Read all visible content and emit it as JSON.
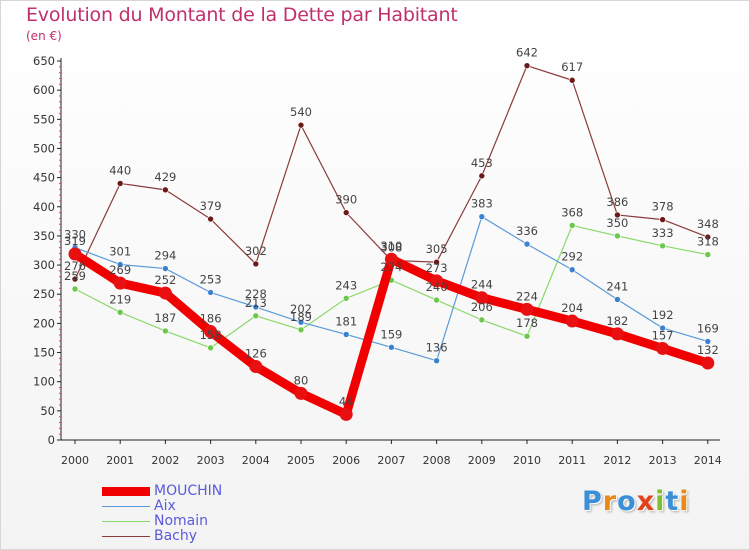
{
  "title": "Evolution du Montant de la Dette par Habitant",
  "unit_label": "(en €)",
  "logo": {
    "text": "Proxiti",
    "letters": [
      "P",
      "r",
      "o",
      "x",
      "i",
      "t",
      "i"
    ],
    "colors": [
      "#3a8fd8",
      "#e88a1a",
      "#3a8fd8",
      "#e0431a",
      "#7fbf30",
      "#3a8fd8",
      "#e88a1a"
    ]
  },
  "chart_data": {
    "type": "line",
    "title": "Evolution du Montant de la Dette par Habitant",
    "ylabel": "(en €)",
    "xlabel": "",
    "x": [
      "2000",
      "2001",
      "2002",
      "2003",
      "2004",
      "2005",
      "2006",
      "2007",
      "2008",
      "2009",
      "2010",
      "2011",
      "2012",
      "2013",
      "2014"
    ],
    "ylim": [
      0,
      650
    ],
    "yticks": [
      0,
      50,
      100,
      150,
      200,
      250,
      300,
      350,
      400,
      450,
      500,
      550,
      600,
      650
    ],
    "grid": false,
    "legend_position": "bottom-left",
    "series": [
      {
        "name": "Bachy",
        "color": "#8b3a3a",
        "marker": "#6b1a1a",
        "values": [
          276,
          440,
          429,
          379,
          302,
          540,
          390,
          308,
          305,
          453,
          642,
          617,
          386,
          378,
          348
        ]
      },
      {
        "name": "Nomain",
        "color": "#8ad86a",
        "marker": "#6cc84a",
        "values": [
          259,
          219,
          187,
          158,
          213,
          189,
          243,
          274,
          240,
          206,
          178,
          368,
          350,
          333,
          318
        ]
      },
      {
        "name": "Aix",
        "color": "#5a9ad8",
        "marker": "#3a82d0",
        "values": [
          330,
          301,
          294,
          253,
          228,
          202,
          181,
          159,
          136,
          383,
          336,
          292,
          241,
          192,
          169
        ]
      },
      {
        "name": "MOUCHIN",
        "color": "#f00000",
        "marker": "#e81010",
        "values": [
          319,
          269,
          252,
          186,
          126,
          80,
          44,
          310,
          273,
          244,
          224,
          204,
          182,
          157,
          132
        ]
      }
    ],
    "labels": {
      "Bachy": [
        "276",
        "440",
        "429",
        "379",
        "302",
        "540",
        "390",
        "308",
        "305",
        "453",
        "642",
        "617",
        "386",
        "378",
        "348"
      ],
      "Nomain": [
        "259",
        "219",
        "187",
        "158",
        "213",
        "189",
        "243",
        "274",
        "240",
        "206",
        "178",
        "368",
        "350",
        "333",
        "318"
      ],
      "Aix": [
        "330",
        "301",
        "294",
        "253",
        "228",
        "202",
        "181",
        "159",
        "136",
        "383",
        "336",
        "292",
        "241",
        "192",
        "169"
      ],
      "MOUCHIN": [
        "319",
        "269",
        "252",
        "186",
        "126",
        "80",
        "44",
        "310",
        "273",
        "244",
        "224",
        "204",
        "182",
        "157",
        "132"
      ]
    }
  },
  "legend": [
    {
      "label": "MOUCHIN",
      "color": "#f00000",
      "thick": true
    },
    {
      "label": "Aix",
      "color": "#5a9ad8",
      "thick": false
    },
    {
      "label": "Nomain",
      "color": "#8ad86a",
      "thick": false
    },
    {
      "label": "Bachy",
      "color": "#8b3a3a",
      "thick": false
    }
  ]
}
